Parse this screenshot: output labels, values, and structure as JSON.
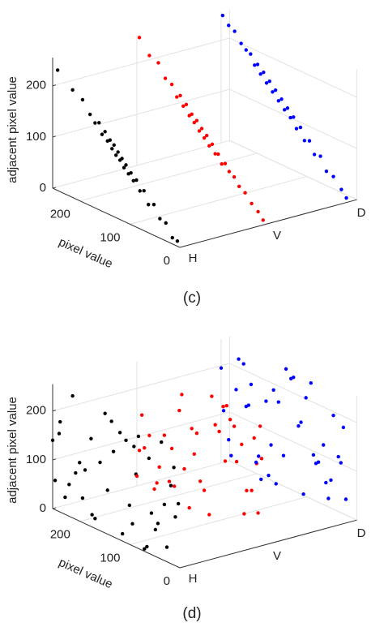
{
  "chart_data": [
    {
      "type": "scatter3d",
      "caption": "(c)",
      "xlabel": "pixel value",
      "ylabel": "adjacent pixel value",
      "categories": [
        "H",
        "V",
        "D"
      ],
      "xlim": [
        0,
        255
      ],
      "ylim": [
        0,
        255
      ],
      "xticks": [
        0,
        100,
        200
      ],
      "yticks": [
        0,
        100,
        200
      ],
      "grid": true,
      "series": [
        {
          "color": "#000000",
          "x": [
            5,
            15,
            28,
            40,
            52,
            63,
            72,
            80,
            87,
            93,
            98,
            103,
            108,
            112,
            116,
            120,
            124,
            128,
            132,
            136,
            140,
            145,
            150,
            156,
            162,
            170,
            180,
            195,
            215,
            245
          ],
          "values": [
            10,
            12,
            35,
            38,
            60,
            55,
            78,
            74,
            92,
            88,
            101,
            97,
            112,
            105,
            121,
            116,
            130,
            122,
            140,
            131,
            146,
            142,
            158,
            150,
            170,
            166,
            178,
            200,
            210,
            235
          ]
        },
        {
          "color": "#ff0000",
          "x": [
            2,
            12,
            25,
            38,
            50,
            60,
            70,
            78,
            85,
            92,
            98,
            104,
            110,
            115,
            120,
            125,
            130,
            135,
            140,
            145,
            150,
            156,
            162,
            168,
            175,
            185,
            198,
            212,
            230,
            250
          ],
          "values": [
            8,
            20,
            30,
            45,
            52,
            66,
            72,
            84,
            80,
            96,
            94,
            110,
            104,
            122,
            115,
            131,
            124,
            142,
            136,
            150,
            145,
            164,
            158,
            176,
            170,
            190,
            196,
            220,
            226,
            252
          ]
        },
        {
          "color": "#0000ff",
          "x": [
            4,
            14,
            30,
            44,
            56,
            68,
            78,
            88,
            96,
            104,
            110,
            116,
            122,
            128,
            134,
            140,
            146,
            152,
            158,
            164,
            170,
            176,
            182,
            188,
            196,
            205,
            215,
            228,
            240,
            252
          ],
          "values": [
            6,
            18,
            36,
            40,
            64,
            62,
            84,
            80,
            102,
            96,
            116,
            112,
            128,
            122,
            140,
            134,
            152,
            146,
            164,
            158,
            176,
            170,
            186,
            182,
            200,
            204,
            212,
            230,
            236,
            250
          ]
        }
      ]
    },
    {
      "type": "scatter3d",
      "caption": "(d)",
      "xlabel": "pixel value",
      "ylabel": "adjacent pixel value",
      "categories": [
        "H",
        "V",
        "D"
      ],
      "xlim": [
        0,
        255
      ],
      "ylim": [
        0,
        255
      ],
      "xticks": [
        0,
        100,
        200
      ],
      "yticks": [
        0,
        100,
        200
      ],
      "grid": true,
      "series": [
        {
          "color": "#000000",
          "x": [
            12,
            230,
            88,
            145,
            37,
            201,
            66,
            178,
            250,
            9,
            120,
            95,
            160,
            44,
            215,
            71,
            133,
            190,
            26,
            108,
            242,
            57,
            170,
            83,
            3,
            222,
            150,
            115,
            62,
            195,
            31,
            240,
            101,
            176,
            18,
            137,
            209,
            49,
            92,
            255
          ],
          "values": [
            200,
            35,
            150,
            90,
            240,
            120,
            12,
            180,
            60,
            100,
            220,
            45,
            140,
            70,
            250,
            5,
            175,
            110,
            30,
            210,
            160,
            85,
            20,
            230,
            130,
            65,
            245,
            15,
            195,
            50,
            115,
            185,
            80,
            25,
            160,
            235,
            95,
            55,
            205,
            140
          ]
        },
        {
          "color": "#ff0000",
          "x": [
            190,
            20,
            140,
            75,
            240,
            110,
            5,
            210,
            55,
            165,
            35,
            255,
            98,
            128,
            15,
            230,
            82,
            180,
            45,
            150,
            200,
            68,
            120,
            25,
            245,
            90,
            160,
            8,
            215,
            135,
            60,
            185,
            40,
            105,
            250,
            78,
            170,
            12,
            220,
            145
          ],
          "values": [
            40,
            210,
            120,
            250,
            85,
            10,
            175,
            60,
            145,
            230,
            95,
            20,
            200,
            70,
            160,
            115,
            245,
            35,
            185,
            5,
            130,
            225,
            55,
            100,
            150,
            190,
            80,
            240,
            25,
            165,
            215,
            110,
            45,
            255,
            75,
            135,
            195,
            60,
            10,
            170
          ]
        },
        {
          "color": "#0000ff",
          "x": [
            100,
            45,
            220,
            160,
            10,
            250,
            75,
            130,
            185,
            30,
            205,
            90,
            140,
            60,
            240,
            115,
            20,
            175,
            225,
            85,
            155,
            5,
            195,
            50,
            125,
            235,
            70,
            165,
            35,
            210,
            145,
            95,
            255,
            15,
            180,
            110,
            40,
            200,
            65,
            150
          ],
          "values": [
            150,
            60,
            230,
            20,
            190,
            110,
            250,
            75,
            35,
            205,
            140,
            15,
            180,
            95,
            55,
            240,
            125,
            5,
            165,
            215,
            85,
            45,
            190,
            135,
            255,
            25,
            105,
            170,
            70,
            225,
            10,
            160,
            195,
            115,
            50,
            245,
            30,
            145,
            90,
            200
          ]
        }
      ]
    }
  ]
}
